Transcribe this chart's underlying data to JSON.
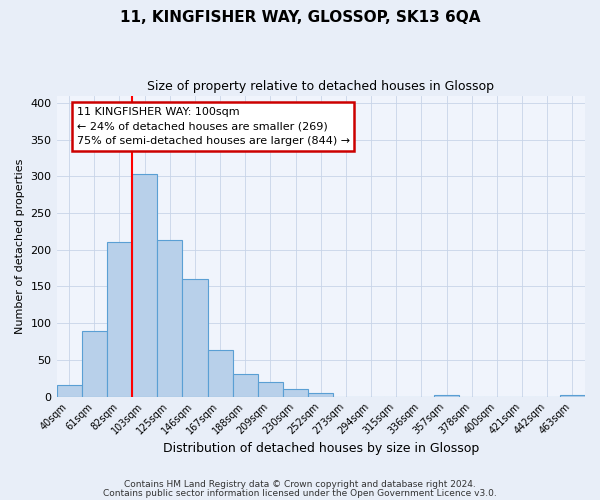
{
  "title": "11, KINGFISHER WAY, GLOSSOP, SK13 6QA",
  "subtitle": "Size of property relative to detached houses in Glossop",
  "xlabel": "Distribution of detached houses by size in Glossop",
  "ylabel": "Number of detached properties",
  "bar_labels": [
    "40sqm",
    "61sqm",
    "82sqm",
    "103sqm",
    "125sqm",
    "146sqm",
    "167sqm",
    "188sqm",
    "209sqm",
    "230sqm",
    "252sqm",
    "273sqm",
    "294sqm",
    "315sqm",
    "336sqm",
    "357sqm",
    "378sqm",
    "400sqm",
    "421sqm",
    "442sqm",
    "463sqm"
  ],
  "bar_values": [
    16,
    89,
    211,
    303,
    213,
    160,
    64,
    31,
    20,
    11,
    5,
    0,
    0,
    0,
    0,
    2,
    0,
    0,
    0,
    0,
    2
  ],
  "bar_color": "#b8d0ea",
  "bar_edge_color": "#5a9fd4",
  "red_line_index": 3,
  "annotation_title": "11 KINGFISHER WAY: 100sqm",
  "annotation_line1": "← 24% of detached houses are smaller (269)",
  "annotation_line2": "75% of semi-detached houses are larger (844) →",
  "annotation_box_color": "#ffffff",
  "annotation_box_edge": "#cc0000",
  "ylim": [
    0,
    410
  ],
  "footnote1": "Contains HM Land Registry data © Crown copyright and database right 2024.",
  "footnote2": "Contains public sector information licensed under the Open Government Licence v3.0.",
  "bg_color": "#e8eef8",
  "plot_bg_color": "#f0f4fc",
  "grid_color": "#c8d4e8"
}
